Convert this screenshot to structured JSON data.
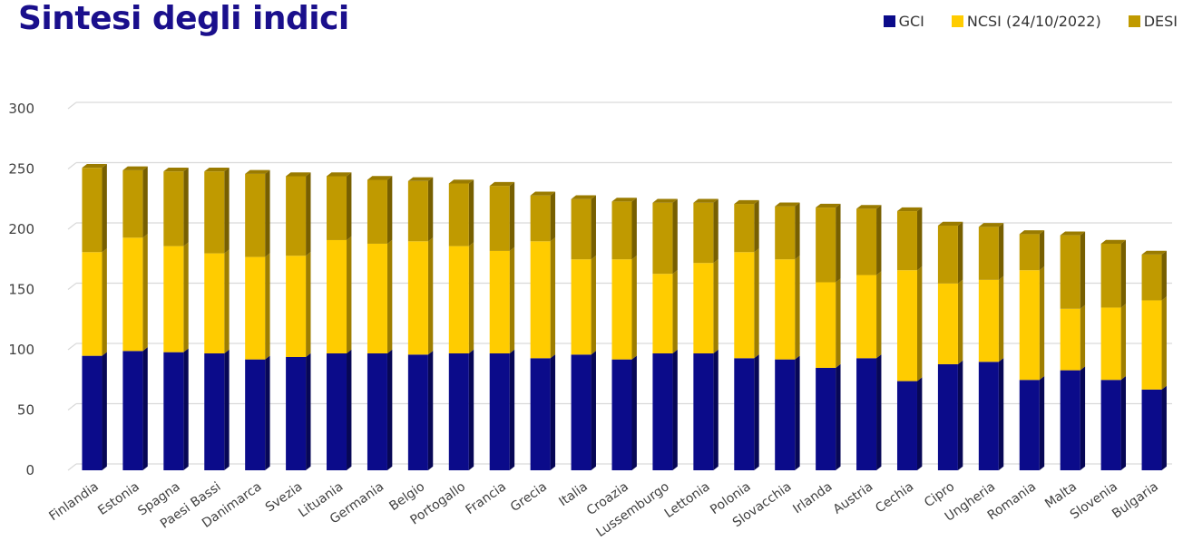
{
  "page": {
    "title": "Sintesi degli indici"
  },
  "colors": {
    "GCI": "#0b0b8a",
    "NCSI": "#ffcc00",
    "DESI": "#c09a00",
    "grid": "#d9d9d9",
    "axis_text": "#404040"
  },
  "chart_data": {
    "type": "bar",
    "stacked": true,
    "title": "Sintesi degli indici",
    "categories": [
      "Finlandia",
      "Estonia",
      "Spagna",
      "Paesi Bassi",
      "Danimarca",
      "Svezia",
      "Lituania",
      "Germania",
      "Belgio",
      "Portogallo",
      "Francia",
      "Grecia",
      "Italia",
      "Croazia",
      "Lussemburgo",
      "Lettonia",
      "Polonia",
      "Slovacchia",
      "Irlanda",
      "Austria",
      "Cechia",
      "Cipro",
      "Ungheria",
      "Romania",
      "Malta",
      "Slovenia",
      "Bulgaria"
    ],
    "series": [
      {
        "name": "GCI",
        "color": "#0b0b8a",
        "values": [
          95,
          99,
          98,
          97,
          92,
          94,
          97,
          97,
          96,
          97,
          97,
          93,
          96,
          92,
          97,
          97,
          93,
          92,
          85,
          93,
          74,
          88,
          90,
          75,
          83,
          75,
          67
        ]
      },
      {
        "name": "NCSI (24/10/2022)",
        "color": "#ffcc00",
        "values": [
          86,
          94,
          88,
          83,
          85,
          84,
          94,
          91,
          94,
          89,
          85,
          97,
          79,
          83,
          66,
          75,
          88,
          83,
          71,
          69,
          92,
          67,
          68,
          91,
          51,
          60,
          74
        ]
      },
      {
        "name": "DESI",
        "color": "#c09a00",
        "values": [
          70,
          56,
          62,
          68,
          69,
          66,
          53,
          53,
          50,
          52,
          54,
          38,
          50,
          48,
          59,
          50,
          40,
          44,
          62,
          55,
          49,
          48,
          44,
          30,
          61,
          53,
          38
        ]
      }
    ],
    "ylim": [
      0,
      300
    ],
    "yticks": [
      0,
      50,
      100,
      150,
      200,
      250,
      300
    ],
    "legend_position": "top-right",
    "grid": true
  }
}
